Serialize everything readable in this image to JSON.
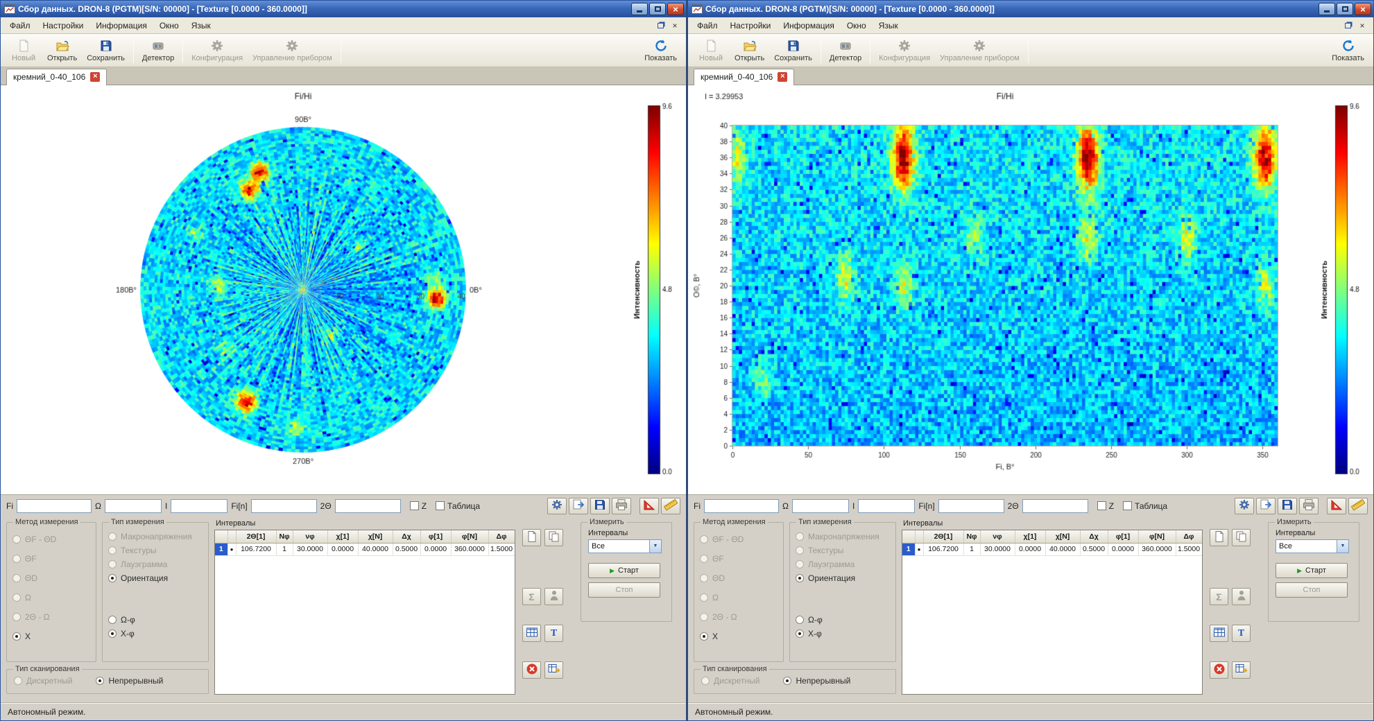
{
  "windows": [
    {
      "title": "Сбор данных. DRON-8 (PGTM)[S/N: 00000] - [Texture [0.0000 - 360.0000]]",
      "menu": [
        "Файл",
        "Настройки",
        "Информация",
        "Окно",
        "Язык"
      ],
      "toolbar": {
        "new": "Новый",
        "open": "Открыть",
        "save": "Сохранить",
        "detector": "Детектор",
        "configuration": "Конфигурация",
        "device_control": "Управление прибором",
        "show": "Показать"
      },
      "tab_label": "кремний_0-40_106",
      "fields": {
        "fi": "Fi",
        "omega": "Ω",
        "i": "I",
        "fi_n": "Fi[n]",
        "two_theta": "2Θ",
        "z": "Z",
        "table": "Таблица"
      },
      "method_group": {
        "title": "Метод измерения",
        "items": [
          {
            "label": "ΘF - ΘD",
            "checked": false,
            "enabled": false
          },
          {
            "label": "ΘF",
            "checked": false,
            "enabled": false
          },
          {
            "label": "ΘD",
            "checked": false,
            "enabled": false
          },
          {
            "label": "Ω",
            "checked": false,
            "enabled": false
          },
          {
            "label": "2Θ - Ω",
            "checked": false,
            "enabled": false
          },
          {
            "label": "X",
            "checked": true,
            "enabled": true
          }
        ]
      },
      "type_group": {
        "title": "Тип измерения",
        "items": [
          {
            "label": "Макронапряжения",
            "checked": false,
            "enabled": false
          },
          {
            "label": "Текстуры",
            "checked": false,
            "enabled": false
          },
          {
            "label": "Лауэграмма",
            "checked": false,
            "enabled": false
          },
          {
            "label": "Ориентация",
            "checked": true,
            "enabled": true
          },
          {
            "label": "Ω-φ",
            "checked": false,
            "enabled": true
          },
          {
            "label": "X-φ",
            "checked": true,
            "enabled": true
          }
        ]
      },
      "scan_group": {
        "title": "Тип сканирования",
        "items": [
          {
            "label": "Дискретный",
            "checked": false,
            "enabled": false
          },
          {
            "label": "Непрерывный",
            "checked": true,
            "enabled": true
          }
        ]
      },
      "intervals": {
        "title": "Интервалы",
        "headers": [
          "2Θ[1]",
          "Nφ",
          "νφ",
          "χ[1]",
          "χ[N]",
          "Δχ",
          "φ[1]",
          "φ[N]",
          "Δφ"
        ],
        "rows": [
          {
            "num": "1",
            "marker": "●",
            "values": [
              "106.7200",
              "1",
              "30.0000",
              "0.0000",
              "40.0000",
              "0.5000",
              "0.0000",
              "360.0000",
              "1.5000"
            ]
          }
        ]
      },
      "measure_group": {
        "title": "Измерить",
        "intervals_label": "Интервалы",
        "select_value": "Все",
        "start": "Старт",
        "stop": "Стоп"
      },
      "status": "Автономный режим.",
      "chart_data": {
        "type": "heatmap",
        "projection": "polar",
        "title": "Fi/Hi",
        "angle_labels": {
          "top": "90В°",
          "left": "180В°",
          "right": "0В°",
          "bottom": "270В°"
        },
        "radial_ticks": [
          "10",
          "20",
          "30",
          "40"
        ],
        "r_max": 40,
        "intensity_min": 0.0,
        "intensity_max": 9.6,
        "base_level": 3.15,
        "noise_amplitude": 2.0,
        "colormap": "jet",
        "colorbar_label": "Интенсивность",
        "colorbar_ticks": [
          "9.6",
          "4.8",
          "0.0"
        ],
        "hotspots": [
          {
            "angle": -4,
            "r": 33,
            "amp": 6.2,
            "sigma": 10
          },
          {
            "angle": 5,
            "r": 33,
            "amp": 2.0,
            "sigma": 8
          },
          {
            "angle": 110,
            "r": 31,
            "amp": 5.6,
            "sigma": 9
          },
          {
            "angle": 118,
            "r": 28,
            "amp": 5.2,
            "sigma": 9
          },
          {
            "angle": 243,
            "r": 31,
            "amp": 5.8,
            "sigma": 10
          },
          {
            "angle": 177,
            "r": 21,
            "amp": 2.4,
            "sigma": 8
          },
          {
            "angle": 266,
            "r": 34,
            "amp": 2.6,
            "sigma": 8
          },
          {
            "angle": 301,
            "r": 13,
            "amp": 1.8,
            "sigma": 7
          },
          {
            "angle": 38,
            "r": 17,
            "amp": 1.8,
            "sigma": 7
          },
          {
            "angle": 218,
            "r": 24,
            "amp": 1.6,
            "sigma": 7
          },
          {
            "angle": 152,
            "r": 30,
            "amp": 1.6,
            "sigma": 7
          },
          {
            "angle": 0,
            "r": 0,
            "amp": 3.0,
            "sigma": 4
          }
        ]
      }
    },
    {
      "title": "Сбор данных. DRON-8 (PGTM)[S/N: 00000] - [Texture [0.0000 - 360.0000]]",
      "menu": [
        "Файл",
        "Настройки",
        "Информация",
        "Окно",
        "Язык"
      ],
      "toolbar": {
        "new": "Новый",
        "open": "Открыть",
        "save": "Сохранить",
        "detector": "Детектор",
        "configuration": "Конфигурация",
        "device_control": "Управление прибором",
        "show": "Показать"
      },
      "tab_label": "кремний_0-40_106",
      "fields": {
        "fi": "Fi",
        "omega": "Ω",
        "i": "I",
        "fi_n": "Fi[n]",
        "two_theta": "2Θ",
        "z": "Z",
        "table": "Таблица"
      },
      "method_group": {
        "title": "Метод измерения",
        "items": [
          {
            "label": "ΘF - ΘD",
            "checked": false,
            "enabled": false
          },
          {
            "label": "ΘF",
            "checked": false,
            "enabled": false
          },
          {
            "label": "ΘD",
            "checked": false,
            "enabled": false
          },
          {
            "label": "Ω",
            "checked": false,
            "enabled": false
          },
          {
            "label": "2Θ - Ω",
            "checked": false,
            "enabled": false
          },
          {
            "label": "X",
            "checked": true,
            "enabled": true
          }
        ]
      },
      "type_group": {
        "title": "Тип измерения",
        "items": [
          {
            "label": "Макронапряжения",
            "checked": false,
            "enabled": false
          },
          {
            "label": "Текстуры",
            "checked": false,
            "enabled": false
          },
          {
            "label": "Лауэграмма",
            "checked": false,
            "enabled": false
          },
          {
            "label": "Ориентация",
            "checked": true,
            "enabled": true
          },
          {
            "label": "Ω-φ",
            "checked": false,
            "enabled": true
          },
          {
            "label": "X-φ",
            "checked": true,
            "enabled": true
          }
        ]
      },
      "scan_group": {
        "title": "Тип сканирования",
        "items": [
          {
            "label": "Дискретный",
            "checked": false,
            "enabled": false
          },
          {
            "label": "Непрерывный",
            "checked": true,
            "enabled": true
          }
        ]
      },
      "intervals": {
        "title": "Интервалы",
        "headers": [
          "2Θ[1]",
          "Nφ",
          "νφ",
          "χ[1]",
          "χ[N]",
          "Δχ",
          "φ[1]",
          "φ[N]",
          "Δφ"
        ],
        "rows": [
          {
            "num": "1",
            "marker": "●",
            "values": [
              "106.7200",
              "1",
              "30.0000",
              "0.0000",
              "40.0000",
              "0.5000",
              "0.0000",
              "360.0000",
              "1.5000"
            ]
          }
        ]
      },
      "measure_group": {
        "title": "Измерить",
        "intervals_label": "Интервалы",
        "select_value": "Все",
        "start": "Старт",
        "stop": "Стоп"
      },
      "status": "Автономный режим.",
      "chart_data": {
        "type": "heatmap",
        "projection": "cartesian",
        "title": "Fi/Hi",
        "readout": "I = 3.29953",
        "xlabel": "Fi, В°",
        "ylabel": "О©, В°",
        "x_min": 0,
        "x_max": 360,
        "x_ticks": [
          0,
          50,
          100,
          150,
          200,
          250,
          300,
          350
        ],
        "y_min": 0,
        "y_max": 40,
        "y_ticks": [
          0,
          2,
          4,
          6,
          8,
          10,
          12,
          14,
          16,
          18,
          20,
          22,
          24,
          26,
          28,
          30,
          32,
          34,
          36,
          38,
          40
        ],
        "intensity_min": 0.0,
        "intensity_max": 9.6,
        "base_level": 3.0,
        "noise_amplitude": 2.0,
        "colormap": "jet",
        "colorbar_label": "Интенсивность",
        "colorbar_ticks": [
          "9.6",
          "4.8",
          "0.0"
        ],
        "hotspots": [
          {
            "x": 113,
            "y": 36,
            "amp": 6.3,
            "sx": 5,
            "sy": 2.8
          },
          {
            "x": 235,
            "y": 36,
            "amp": 6.3,
            "sx": 5,
            "sy": 2.8
          },
          {
            "x": 352,
            "y": 36,
            "amp": 5.8,
            "sx": 5,
            "sy": 2.8
          },
          {
            "x": 3,
            "y": 36,
            "amp": 2.2,
            "sx": 4,
            "sy": 2.4
          },
          {
            "x": 75,
            "y": 21,
            "amp": 2.6,
            "sx": 4,
            "sy": 2.0
          },
          {
            "x": 113,
            "y": 20,
            "amp": 2.4,
            "sx": 4,
            "sy": 2.0
          },
          {
            "x": 160,
            "y": 26,
            "amp": 1.8,
            "sx": 4,
            "sy": 2.0
          },
          {
            "x": 235,
            "y": 26,
            "amp": 2.6,
            "sx": 4,
            "sy": 2.0
          },
          {
            "x": 300,
            "y": 26,
            "amp": 2.4,
            "sx": 4,
            "sy": 2.0
          },
          {
            "x": 352,
            "y": 20,
            "amp": 2.2,
            "sx": 4,
            "sy": 2.0
          },
          {
            "x": 20,
            "y": 8,
            "amp": 1.4,
            "sx": 4,
            "sy": 2.0
          }
        ]
      }
    }
  ]
}
